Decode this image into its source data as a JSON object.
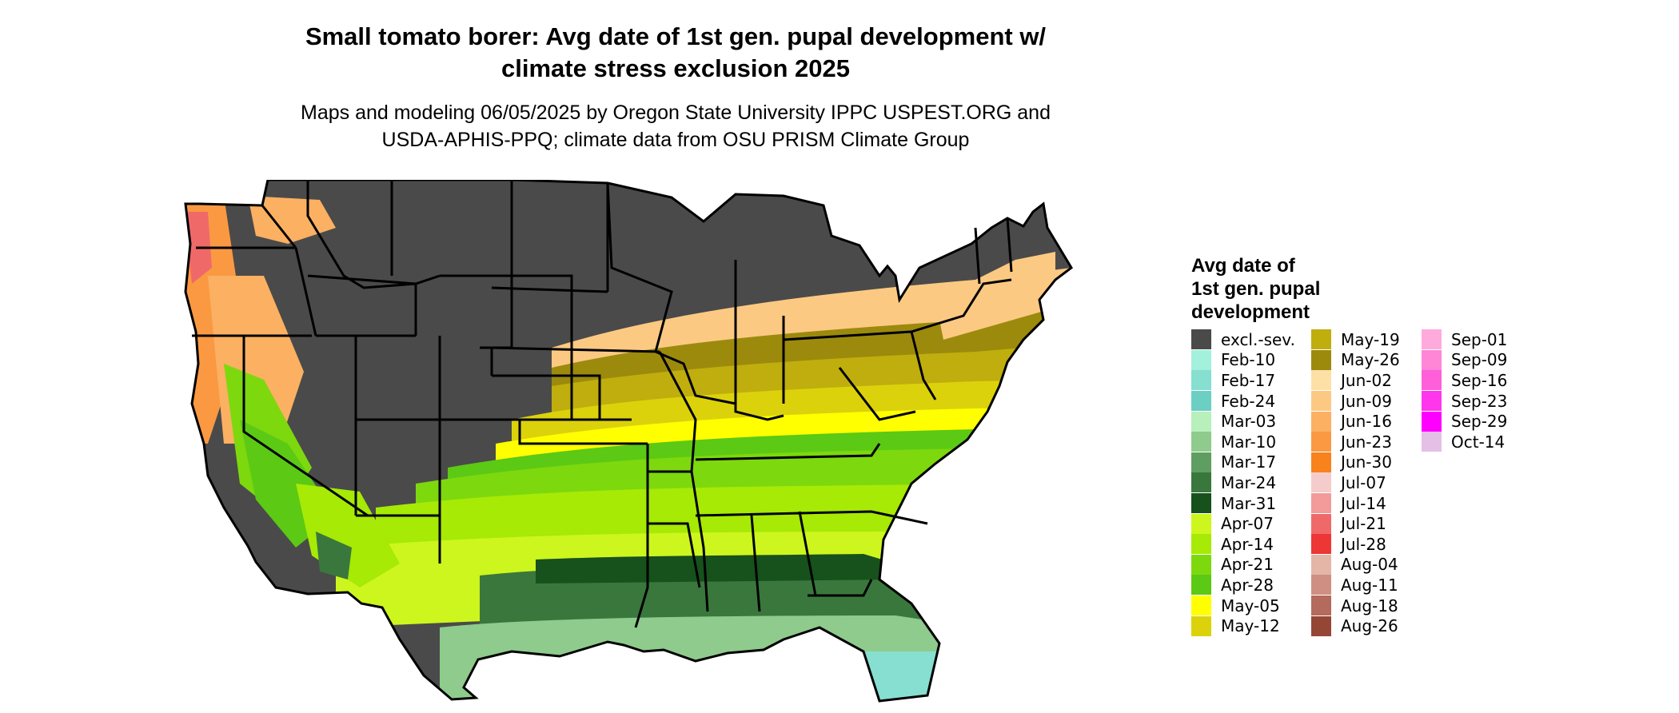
{
  "title": {
    "line1": "Small tomato borer: Avg date of 1st gen. pupal development w/",
    "line2": "climate stress exclusion 2025"
  },
  "subtitle": {
    "line1": "Maps and modeling 06/05/2025 by Oregon State University IPPC USPEST.ORG and",
    "line2": "USDA-APHIS-PPQ; climate data from OSU PRISM Climate Group"
  },
  "legend": {
    "title_lines": [
      "Avg date of",
      "1st gen. pupal",
      "development"
    ],
    "items": [
      {
        "label": "excl.-sev.",
        "color": "#4a4a4a"
      },
      {
        "label": "Feb-10",
        "color": "#a3f0dd"
      },
      {
        "label": "Feb-17",
        "color": "#86dfd0"
      },
      {
        "label": "Feb-24",
        "color": "#6bcfc4"
      },
      {
        "label": "Mar-03",
        "color": "#b7f0ba"
      },
      {
        "label": "Mar-10",
        "color": "#8ecb8c"
      },
      {
        "label": "Mar-17",
        "color": "#5f9e61"
      },
      {
        "label": "Mar-24",
        "color": "#3a773d"
      },
      {
        "label": "Mar-31",
        "color": "#17511c"
      },
      {
        "label": "Apr-07",
        "color": "#cdf61e"
      },
      {
        "label": "Apr-14",
        "color": "#a6ea05"
      },
      {
        "label": "Apr-21",
        "color": "#7dd80e"
      },
      {
        "label": "Apr-28",
        "color": "#5cc914"
      },
      {
        "label": "May-05",
        "color": "#ffff00"
      },
      {
        "label": "May-12",
        "color": "#dcd20b"
      },
      {
        "label": "May-19",
        "color": "#bfae0d"
      },
      {
        "label": "May-26",
        "color": "#9c8a0d"
      },
      {
        "label": "Jun-02",
        "color": "#fde0a6"
      },
      {
        "label": "Jun-09",
        "color": "#fcc983"
      },
      {
        "label": "Jun-16",
        "color": "#fbb062"
      },
      {
        "label": "Jun-23",
        "color": "#fa9942"
      },
      {
        "label": "Jun-30",
        "color": "#f8821c"
      },
      {
        "label": "Jul-07",
        "color": "#f5cccc"
      },
      {
        "label": "Jul-14",
        "color": "#f39a9a"
      },
      {
        "label": "Jul-21",
        "color": "#f06969"
      },
      {
        "label": "Jul-28",
        "color": "#ed3636"
      },
      {
        "label": "Aug-04",
        "color": "#e4b6a8"
      },
      {
        "label": "Aug-11",
        "color": "#cf8f82"
      },
      {
        "label": "Aug-18",
        "color": "#b46a5c"
      },
      {
        "label": "Aug-26",
        "color": "#964635"
      },
      {
        "label": "Sep-01",
        "color": "#ffaadc"
      },
      {
        "label": "Sep-09",
        "color": "#ff86d6"
      },
      {
        "label": "Sep-16",
        "color": "#ff5fd8"
      },
      {
        "label": "Sep-23",
        "color": "#ff36ec"
      },
      {
        "label": "Sep-29",
        "color": "#ff00ff"
      },
      {
        "label": "Oct-14",
        "color": "#e4bfe6"
      }
    ]
  }
}
